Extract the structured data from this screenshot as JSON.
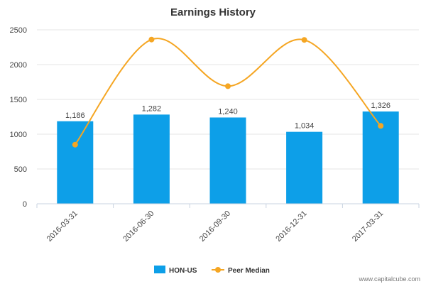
{
  "chart_data": {
    "type": "bar",
    "title": "Earnings History",
    "categories": [
      "2016-03-31",
      "2016-06-30",
      "2016-09-30",
      "2016-12-31",
      "2017-03-31"
    ],
    "ylim": [
      0,
      2500
    ],
    "yticks": [
      0,
      500,
      1000,
      1500,
      2000,
      2500
    ],
    "grid": true,
    "legend_position": "bottom-center",
    "series": [
      {
        "name": "HON-US",
        "type": "bar",
        "color": "#0d9fe8",
        "values": [
          1186,
          1282,
          1240,
          1034,
          1326
        ],
        "labels": [
          "1,186",
          "1,282",
          "1,240",
          "1,034",
          "1,326"
        ]
      },
      {
        "name": "Peer Median",
        "type": "line",
        "color": "#f5a623",
        "values": [
          850,
          2360,
          1690,
          2355,
          1120
        ]
      }
    ]
  },
  "watermark": "www.capitalcube.com"
}
